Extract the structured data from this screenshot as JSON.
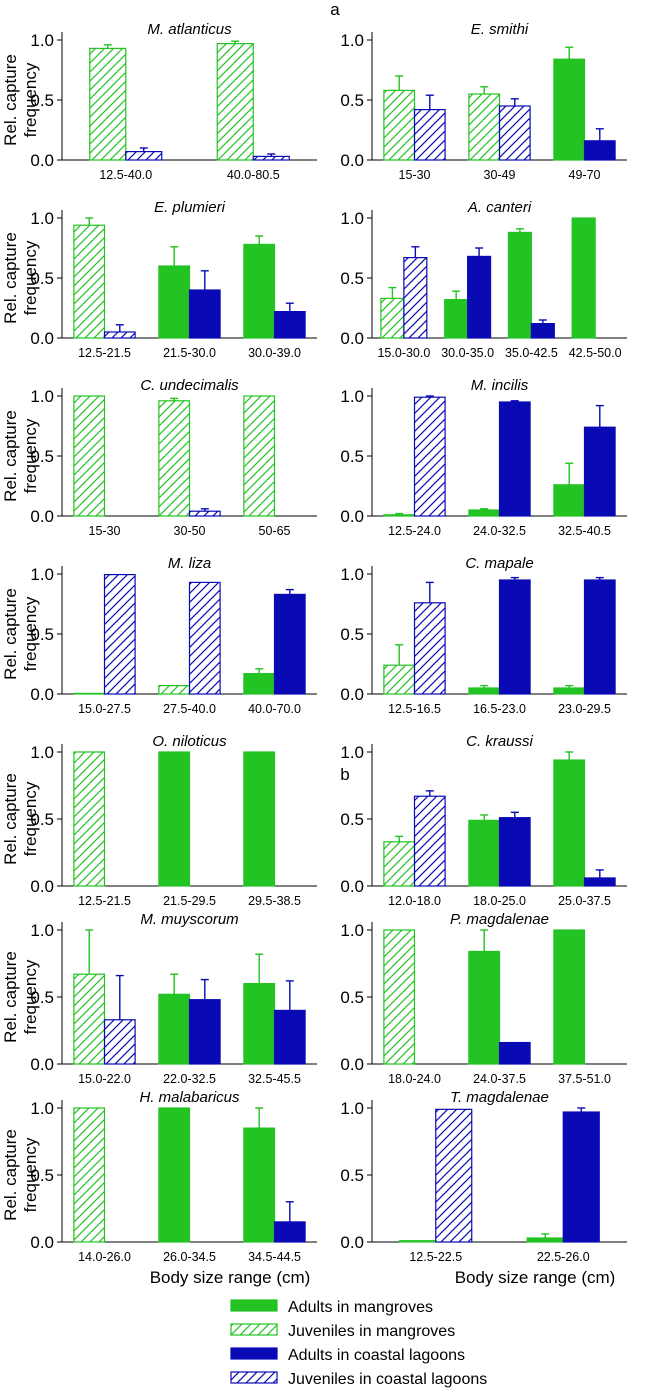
{
  "figure": {
    "panel_labels": [
      "a",
      "b"
    ],
    "y_label_line1": "Rel. capture",
    "y_label_line2": "frequency",
    "x_label": "Body size range (cm)",
    "colors": {
      "mangrove": "#22c322",
      "lagoon": "#0a0ab4",
      "axis": "#000000"
    },
    "legend": [
      {
        "label": "Adults in mangroves",
        "series": "adults_mangroves"
      },
      {
        "label": "Juveniles in mangroves",
        "series": "juveniles_mangroves"
      },
      {
        "label": "Adults in coastal lagoons",
        "series": "adults_lagoons"
      },
      {
        "label": "Juveniles in coastal lagoons",
        "series": "juveniles_lagoons"
      }
    ]
  },
  "chart_data": [
    {
      "type": "bar",
      "title": "M. atlanticus",
      "xlabel": "",
      "ylabel": "Rel. capture frequency",
      "ylim": [
        0,
        1
      ],
      "yticks": [
        "0.0",
        "0.5",
        "1.0"
      ],
      "categories": [
        "12.5-40.0",
        "40.0-80.5"
      ],
      "bars": [
        {
          "series": "juveniles_mangroves",
          "cat": 0,
          "value": 0.93,
          "err": 0.03
        },
        {
          "series": "juveniles_lagoons",
          "cat": 0,
          "value": 0.07,
          "err": 0.03
        },
        {
          "series": "juveniles_mangroves",
          "cat": 1,
          "value": 0.97,
          "err": 0.02
        },
        {
          "series": "juveniles_lagoons",
          "cat": 1,
          "value": 0.03,
          "err": 0.02
        }
      ]
    },
    {
      "type": "bar",
      "title": "E. smithi",
      "xlabel": "",
      "ylabel": "",
      "ylim": [
        0,
        1
      ],
      "yticks": [
        "0.0",
        "0.5",
        "1.0"
      ],
      "categories": [
        "15-30",
        "30-49",
        "49-70"
      ],
      "bars": [
        {
          "series": "juveniles_mangroves",
          "cat": 0,
          "value": 0.58,
          "err": 0.12
        },
        {
          "series": "juveniles_lagoons",
          "cat": 0,
          "value": 0.42,
          "err": 0.12
        },
        {
          "series": "juveniles_mangroves",
          "cat": 1,
          "value": 0.55,
          "err": 0.06
        },
        {
          "series": "juveniles_lagoons",
          "cat": 1,
          "value": 0.45,
          "err": 0.06
        },
        {
          "series": "adults_mangroves",
          "cat": 2,
          "value": 0.84,
          "err": 0.1
        },
        {
          "series": "adults_lagoons",
          "cat": 2,
          "value": 0.16,
          "err": 0.1
        }
      ]
    },
    {
      "type": "bar",
      "title": "E. plumieri",
      "xlabel": "",
      "ylabel": "Rel. capture frequency",
      "ylim": [
        0,
        1
      ],
      "yticks": [
        "0.0",
        "0.5",
        "1.0"
      ],
      "categories": [
        "12.5-21.5",
        "21.5-30.0",
        "30.0-39.0"
      ],
      "bars": [
        {
          "series": "juveniles_mangroves",
          "cat": 0,
          "value": 0.94,
          "err": 0.06
        },
        {
          "series": "juveniles_lagoons",
          "cat": 0,
          "value": 0.05,
          "err": 0.06
        },
        {
          "series": "adults_mangroves",
          "cat": 1,
          "value": 0.6,
          "err": 0.16
        },
        {
          "series": "adults_lagoons",
          "cat": 1,
          "value": 0.4,
          "err": 0.16
        },
        {
          "series": "adults_mangroves",
          "cat": 2,
          "value": 0.78,
          "err": 0.07
        },
        {
          "series": "adults_lagoons",
          "cat": 2,
          "value": 0.22,
          "err": 0.07
        }
      ]
    },
    {
      "type": "bar",
      "title": "A. canteri",
      "xlabel": "",
      "ylabel": "",
      "ylim": [
        0,
        1
      ],
      "yticks": [
        "0.0",
        "0.5",
        "1.0"
      ],
      "categories": [
        "15.0-30.0",
        "30.0-35.0",
        "35.0-42.5",
        "42.5-50.0"
      ],
      "bars": [
        {
          "series": "juveniles_mangroves",
          "cat": 0,
          "value": 0.33,
          "err": 0.09
        },
        {
          "series": "juveniles_lagoons",
          "cat": 0,
          "value": 0.67,
          "err": 0.09
        },
        {
          "series": "adults_mangroves",
          "cat": 1,
          "value": 0.32,
          "err": 0.07
        },
        {
          "series": "adults_lagoons",
          "cat": 1,
          "value": 0.68,
          "err": 0.07
        },
        {
          "series": "adults_mangroves",
          "cat": 2,
          "value": 0.88,
          "err": 0.03
        },
        {
          "series": "adults_lagoons",
          "cat": 2,
          "value": 0.12,
          "err": 0.03
        },
        {
          "series": "adults_mangroves",
          "cat": 3,
          "value": 1.0,
          "err": 0
        }
      ]
    },
    {
      "type": "bar",
      "title": "C. undecimalis",
      "xlabel": "",
      "ylabel": "Rel. capture frequency",
      "ylim": [
        0,
        1
      ],
      "yticks": [
        "0.0",
        "0.5",
        "1.0"
      ],
      "categories": [
        "15-30",
        "30-50",
        "50-65"
      ],
      "bars": [
        {
          "series": "juveniles_mangroves",
          "cat": 0,
          "value": 1.0,
          "err": 0
        },
        {
          "series": "juveniles_mangroves",
          "cat": 1,
          "value": 0.96,
          "err": 0.02
        },
        {
          "series": "juveniles_lagoons",
          "cat": 1,
          "value": 0.04,
          "err": 0.02
        },
        {
          "series": "juveniles_mangroves",
          "cat": 2,
          "value": 1.0,
          "err": 0
        }
      ]
    },
    {
      "type": "bar",
      "title": "M. incilis",
      "xlabel": "",
      "ylabel": "",
      "ylim": [
        0,
        1
      ],
      "yticks": [
        "0.0",
        "0.5",
        "1.0"
      ],
      "categories": [
        "12.5-24.0",
        "24.0-32.5",
        "32.5-40.5"
      ],
      "bars": [
        {
          "series": "juveniles_mangroves",
          "cat": 0,
          "value": 0.01,
          "err": 0.01
        },
        {
          "series": "juveniles_lagoons",
          "cat": 0,
          "value": 0.99,
          "err": 0.01
        },
        {
          "series": "adults_mangroves",
          "cat": 1,
          "value": 0.05,
          "err": 0.01
        },
        {
          "series": "adults_lagoons",
          "cat": 1,
          "value": 0.95,
          "err": 0.01
        },
        {
          "series": "adults_mangroves",
          "cat": 2,
          "value": 0.26,
          "err": 0.18
        },
        {
          "series": "adults_lagoons",
          "cat": 2,
          "value": 0.74,
          "err": 0.18
        }
      ]
    },
    {
      "type": "bar",
      "title": "M. liza",
      "xlabel": "",
      "ylabel": "Rel. capture frequency",
      "ylim": [
        0,
        1
      ],
      "yticks": [
        "0.0",
        "0.5",
        "1.0"
      ],
      "categories": [
        "15.0-27.5",
        "27.5-40.0",
        "40.0-70.0"
      ],
      "bars": [
        {
          "series": "juveniles_mangroves",
          "cat": 0,
          "value": 0.005,
          "err": 0
        },
        {
          "series": "juveniles_lagoons",
          "cat": 0,
          "value": 0.995,
          "err": 0
        },
        {
          "series": "juveniles_mangroves",
          "cat": 1,
          "value": 0.07,
          "err": 0
        },
        {
          "series": "juveniles_lagoons",
          "cat": 1,
          "value": 0.93,
          "err": 0
        },
        {
          "series": "adults_mangroves",
          "cat": 2,
          "value": 0.17,
          "err": 0.04
        },
        {
          "series": "adults_lagoons",
          "cat": 2,
          "value": 0.83,
          "err": 0.04
        }
      ]
    },
    {
      "type": "bar",
      "title": "C. mapale",
      "xlabel": "",
      "ylabel": "",
      "ylim": [
        0,
        1
      ],
      "yticks": [
        "0.0",
        "0.5",
        "1.0"
      ],
      "categories": [
        "12.5-16.5",
        "16.5-23.0",
        "23.0-29.5"
      ],
      "bars": [
        {
          "series": "juveniles_mangroves",
          "cat": 0,
          "value": 0.24,
          "err": 0.17
        },
        {
          "series": "juveniles_lagoons",
          "cat": 0,
          "value": 0.76,
          "err": 0.17
        },
        {
          "series": "adults_mangroves",
          "cat": 1,
          "value": 0.05,
          "err": 0.02
        },
        {
          "series": "adults_lagoons",
          "cat": 1,
          "value": 0.95,
          "err": 0.02
        },
        {
          "series": "adults_mangroves",
          "cat": 2,
          "value": 0.05,
          "err": 0.02
        },
        {
          "series": "adults_lagoons",
          "cat": 2,
          "value": 0.95,
          "err": 0.02
        }
      ]
    },
    {
      "type": "bar",
      "title": "O. niloticus",
      "xlabel": "",
      "ylabel": "Rel. capture frequency",
      "ylim": [
        0,
        1
      ],
      "yticks": [
        "0.0",
        "0.5",
        "1.0"
      ],
      "categories": [
        "12.5-21.5",
        "21.5-29.5",
        "29.5-38.5"
      ],
      "bars": [
        {
          "series": "juveniles_mangroves",
          "cat": 0,
          "value": 1.0,
          "err": 0
        },
        {
          "series": "adults_mangroves",
          "cat": 1,
          "value": 1.0,
          "err": 0
        },
        {
          "series": "adults_mangroves",
          "cat": 2,
          "value": 1.0,
          "err": 0
        }
      ]
    },
    {
      "type": "bar",
      "title": "C. kraussi",
      "xlabel": "",
      "ylabel": "",
      "ylim": [
        0,
        1
      ],
      "yticks": [
        "0.0",
        "0.5",
        "1.0"
      ],
      "categories": [
        "12.0-18.0",
        "18.0-25.0",
        "25.0-37.5"
      ],
      "bars": [
        {
          "series": "juveniles_mangroves",
          "cat": 0,
          "value": 0.33,
          "err": 0.04
        },
        {
          "series": "juveniles_lagoons",
          "cat": 0,
          "value": 0.67,
          "err": 0.04
        },
        {
          "series": "adults_mangroves",
          "cat": 1,
          "value": 0.49,
          "err": 0.04
        },
        {
          "series": "adults_lagoons",
          "cat": 1,
          "value": 0.51,
          "err": 0.04
        },
        {
          "series": "adults_mangroves",
          "cat": 2,
          "value": 0.94,
          "err": 0.06
        },
        {
          "series": "adults_lagoons",
          "cat": 2,
          "value": 0.06,
          "err": 0.06
        }
      ]
    },
    {
      "type": "bar",
      "title": "M. muyscorum",
      "xlabel": "",
      "ylabel": "Rel. capture frequency",
      "ylim": [
        0,
        1
      ],
      "yticks": [
        "0.0",
        "0.5",
        "1.0"
      ],
      "categories": [
        "15.0-22.0",
        "22.0-32.5",
        "32.5-45.5"
      ],
      "bars": [
        {
          "series": "juveniles_mangroves",
          "cat": 0,
          "value": 0.67,
          "err": 0.33
        },
        {
          "series": "juveniles_lagoons",
          "cat": 0,
          "value": 0.33,
          "err": 0.33
        },
        {
          "series": "adults_mangroves",
          "cat": 1,
          "value": 0.52,
          "err": 0.15
        },
        {
          "series": "adults_lagoons",
          "cat": 1,
          "value": 0.48,
          "err": 0.15
        },
        {
          "series": "adults_mangroves",
          "cat": 2,
          "value": 0.6,
          "err": 0.22
        },
        {
          "series": "adults_lagoons",
          "cat": 2,
          "value": 0.4,
          "err": 0.22
        }
      ]
    },
    {
      "type": "bar",
      "title": "P. magdalenae",
      "xlabel": "",
      "ylabel": "",
      "ylim": [
        0,
        1
      ],
      "yticks": [
        "0.0",
        "0.5",
        "1.0"
      ],
      "categories": [
        "18.0-24.0",
        "24.0-37.5",
        "37.5-51.0"
      ],
      "bars": [
        {
          "series": "juveniles_mangroves",
          "cat": 0,
          "value": 1.0,
          "err": 0
        },
        {
          "series": "adults_mangroves",
          "cat": 1,
          "value": 0.84,
          "err": 0.16
        },
        {
          "series": "adults_lagoons",
          "cat": 1,
          "value": 0.16,
          "err": 0
        },
        {
          "series": "adults_mangroves",
          "cat": 2,
          "value": 1.0,
          "err": 0
        }
      ]
    },
    {
      "type": "bar",
      "title": "H. malabaricus",
      "xlabel": "Body size range (cm)",
      "ylabel": "Rel. capture frequency",
      "ylim": [
        0,
        1
      ],
      "yticks": [
        "0.0",
        "0.5",
        "1.0"
      ],
      "categories": [
        "14.0-26.0",
        "26.0-34.5",
        "34.5-44.5"
      ],
      "bars": [
        {
          "series": "juveniles_mangroves",
          "cat": 0,
          "value": 1.0,
          "err": 0
        },
        {
          "series": "adults_mangroves",
          "cat": 1,
          "value": 1.0,
          "err": 0
        },
        {
          "series": "adults_mangroves",
          "cat": 2,
          "value": 0.85,
          "err": 0.15
        },
        {
          "series": "adults_lagoons",
          "cat": 2,
          "value": 0.15,
          "err": 0.15
        }
      ]
    },
    {
      "type": "bar",
      "title": "T. magdalenae",
      "xlabel": "Body size range (cm)",
      "ylabel": "",
      "ylim": [
        0,
        1
      ],
      "yticks": [
        "0.0",
        "0.5",
        "1.0"
      ],
      "categories": [
        "12.5-22.5",
        "22.5-26.0"
      ],
      "bars": [
        {
          "series": "juveniles_mangroves",
          "cat": 0,
          "value": 0.01,
          "err": 0
        },
        {
          "series": "juveniles_lagoons",
          "cat": 0,
          "value": 0.99,
          "err": 0
        },
        {
          "series": "adults_mangroves",
          "cat": 1,
          "value": 0.03,
          "err": 0.03
        },
        {
          "series": "adults_lagoons",
          "cat": 1,
          "value": 0.97,
          "err": 0.03
        }
      ]
    }
  ]
}
